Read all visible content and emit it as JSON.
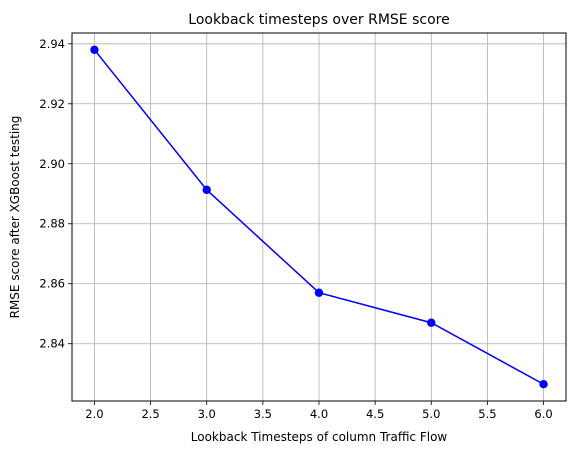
{
  "chart_data": {
    "type": "line",
    "title": "Lookback timesteps over RMSE score",
    "xlabel": "Lookback Timesteps of column Traffic Flow",
    "ylabel": "RMSE score after XGBoost testing",
    "x": [
      2.0,
      3.0,
      4.0,
      5.0,
      6.0
    ],
    "series": [
      {
        "values": [
          2.938,
          2.8913,
          2.857,
          2.847,
          2.8265
        ],
        "color": "#0000ff",
        "marker": "circle"
      }
    ],
    "xlim": [
      1.8,
      6.2
    ],
    "ylim": [
      2.8209,
      2.9436
    ],
    "xticks": [
      2.0,
      2.5,
      3.0,
      3.5,
      4.0,
      4.5,
      5.0,
      5.5,
      6.0
    ],
    "xtick_labels": [
      "2.0",
      "2.5",
      "3.0",
      "3.5",
      "4.0",
      "4.5",
      "5.0",
      "5.5",
      "6.0"
    ],
    "yticks": [
      2.84,
      2.86,
      2.88,
      2.9,
      2.92,
      2.94
    ],
    "ytick_labels": [
      "2.84",
      "2.86",
      "2.88",
      "2.90",
      "2.92",
      "2.94"
    ],
    "grid": true,
    "grid_color": "#b0b0b0"
  }
}
